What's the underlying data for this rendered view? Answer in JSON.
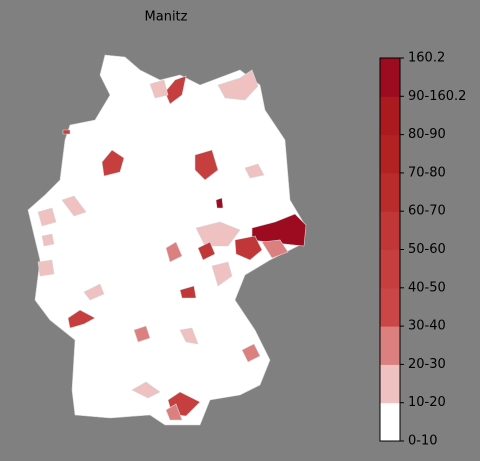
{
  "title": "Manitz",
  "colorbar": {
    "ticks": [
      "0-10",
      "10-20",
      "20-30",
      "30-40",
      "40-50",
      "50-60",
      "60-70",
      "70-80",
      "80-90",
      "90-160.2",
      "160.2"
    ],
    "colors": [
      "#ffffff",
      "#efc1c1",
      "#dc7f7f",
      "#cb4646",
      "#c63e3e",
      "#c13636",
      "#ba2b2b",
      "#b32222",
      "#aa1a1f",
      "#9c0b1f"
    ]
  }
}
